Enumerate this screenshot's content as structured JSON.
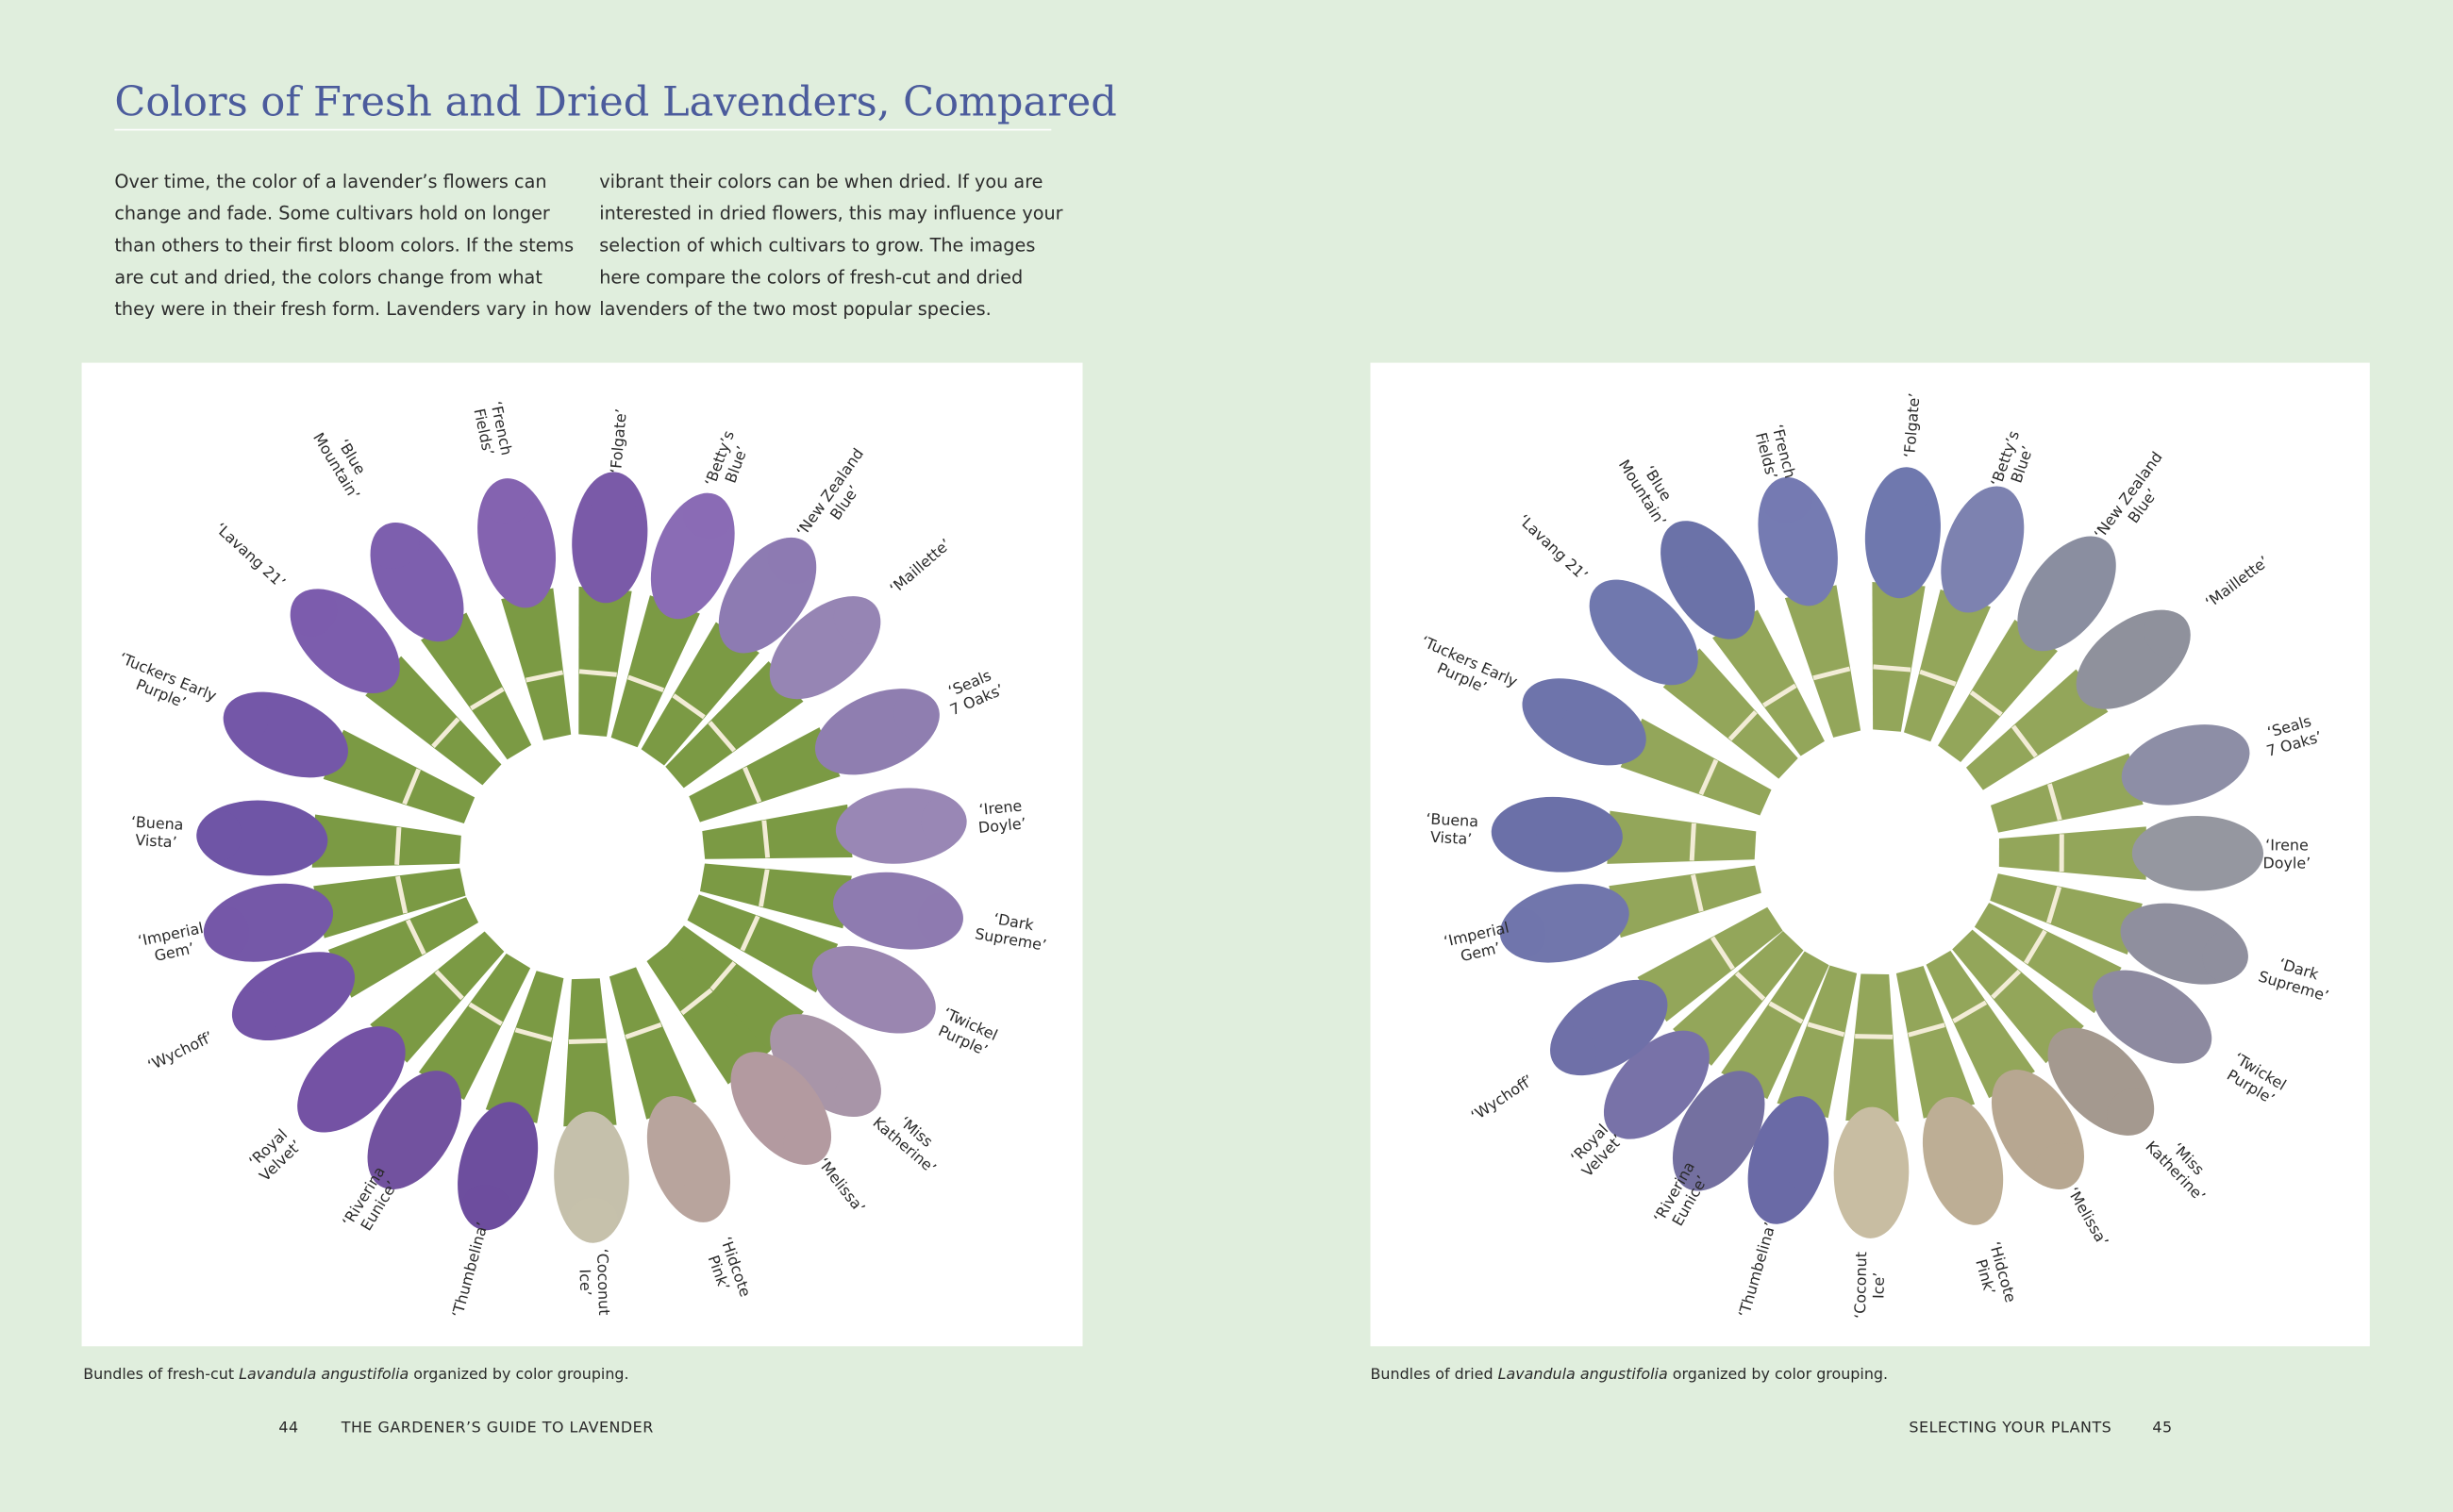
{
  "title": "Colors of Fresh and Dried Lavenders, Compared",
  "body": {
    "columns": [
      [
        "Over time, the color of a lavender’s flowers can",
        "change and fade. Some cultivars hold on longer",
        "than others to their first bloom colors. If the stems",
        "are cut and dried, the colors change from what",
        "they were in their fresh form. Lavenders vary in how"
      ],
      [
        "vibrant their colors can be when dried. If you are",
        "interested in dried flowers, this may influence your",
        "selection of which cultivars to grow. The images",
        "here compare the colors of fresh-cut and dried",
        "lavenders of the two most popular species."
      ]
    ]
  },
  "figures": [
    {
      "labels": [
        [
          "‘Blue",
          "Mountain’"
        ],
        [
          "‘French",
          "Fields’"
        ],
        [
          "‘Folgate’"
        ],
        [
          "‘Betty’s",
          "Blue’"
        ],
        [
          "‘New Zealand",
          "Blue’"
        ],
        [
          "‘Maillette’"
        ],
        [
          "‘Seals",
          "7 Oaks’"
        ],
        [
          "‘Irene",
          "Doyle’"
        ],
        [
          "‘Dark",
          "Supreme’"
        ],
        [
          "‘Twickel",
          "Purple’"
        ],
        [
          "‘Miss",
          "Katherine’"
        ],
        [
          "‘Melissa’"
        ],
        [
          "‘Hidcote",
          "Pink’"
        ],
        [
          "‘Coconut",
          "Ice’"
        ],
        [
          "‘Thumbelina’"
        ],
        [
          "‘Riverina",
          "Eunice’"
        ],
        [
          "‘Royal",
          "Velvet’"
        ],
        [
          "‘Wychoff’"
        ],
        [
          "‘Imperial",
          "Gem’"
        ],
        [
          "‘Buena",
          "Vista’"
        ],
        [
          "‘Tuckers Early",
          "Purple’"
        ],
        [
          "‘Lavang 21’"
        ]
      ],
      "caption": {
        "before": "Bundles of fresh-cut ",
        "italic": "Lavandula angustifolia",
        "after": " organized by color grouping."
      }
    },
    {
      "labels": [
        [
          "‘Blue",
          "Mountain’"
        ],
        [
          "‘French",
          "Fields’"
        ],
        [
          "‘Folgate’"
        ],
        [
          "‘Betty’s",
          "Blue’"
        ],
        [
          "‘New Zealand",
          "Blue’"
        ],
        [
          "‘Maillette’"
        ],
        [
          "‘Seals",
          "7 Oaks’"
        ],
        [
          "‘Irene",
          "Doyle’"
        ],
        [
          "‘Dark",
          "Supreme’"
        ],
        [
          "‘Twickel",
          "Purple’"
        ],
        [
          "‘Miss",
          "Katherine’"
        ],
        [
          "‘Melissa’"
        ],
        [
          "‘Hidcote",
          "Pink’"
        ],
        [
          "‘Coconut",
          "Ice’"
        ],
        [
          "‘Thumbelina’"
        ],
        [
          "‘Riverina",
          "Eunice’"
        ],
        [
          "‘Royal",
          "Velvet’"
        ],
        [
          "‘Wychoff’"
        ],
        [
          "‘Imperial",
          "Gem’"
        ],
        [
          "‘Buena",
          "Vista’"
        ],
        [
          "‘Tuckers Early",
          "Purple’"
        ],
        [
          "‘Lavang 21’"
        ]
      ],
      "caption": {
        "before": "Bundles of dried ",
        "italic": "Lavandula angustifolia",
        "after": " organized by color grouping."
      }
    }
  ],
  "footer": {
    "left": {
      "page": "44",
      "running_head": "THE GARDENER’S GUIDE TO LAVENDER"
    },
    "right": {
      "running_head": "SELECTING YOUR PLANTS",
      "page": "45"
    }
  }
}
